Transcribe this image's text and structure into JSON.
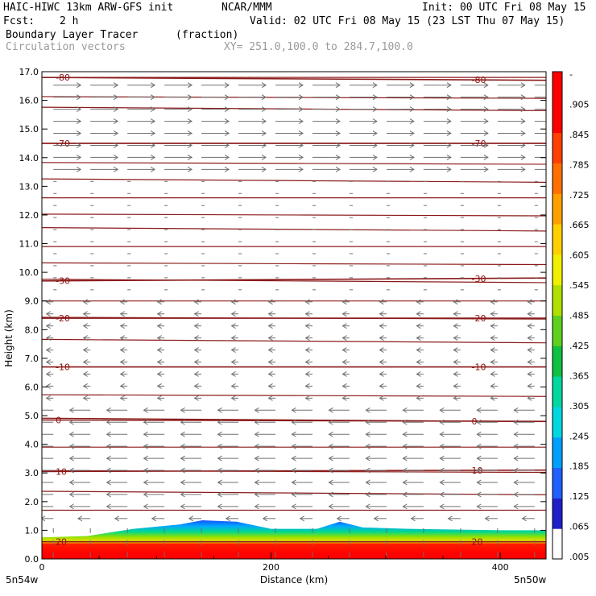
{
  "header": {
    "model": "HAIC-HIWC 13km ARW-GFS init",
    "org": "NCAR/MMM",
    "init": "Init: 00 UTC Fri 08 May 15",
    "fcst_label": "Fcst:",
    "fcst_value": "2 h",
    "valid": "Valid: 02 UTC Fri 08 May 15 (23 LST Thu 07 May 15)",
    "field": "Boundary Layer Tracer",
    "units": "(fraction)",
    "vectors": "Circulation vectors",
    "xy": "XY= 251.0,100.0 to 284.7,100.0"
  },
  "colors": {
    "contour": "#8b1a1a",
    "vector": "#707070",
    "colorbar": [
      "#ffffff",
      "#2020c8",
      "#2060ff",
      "#00a0ff",
      "#00d8e0",
      "#00d8a0",
      "#10c040",
      "#60d020",
      "#b0e000",
      "#f0f000",
      "#ffd000",
      "#ffa000",
      "#ff7000",
      "#ff4000",
      "#ff0000",
      "#ff0000"
    ]
  },
  "chart_data": {
    "type": "heatmap",
    "title": "Boundary Layer Tracer",
    "units": "(fraction)",
    "ylabel": "Height (km)",
    "xlabel": "Distance (km)",
    "xlim": [
      0,
      440
    ],
    "ylim": [
      0,
      17
    ],
    "x_ticks": [
      "0",
      "200",
      "400"
    ],
    "y_ticks": [
      "0.0",
      "1.0",
      "2.0",
      "3.0",
      "4.0",
      "5.0",
      "6.0",
      "7.0",
      "8.0",
      "9.0",
      "10.0",
      "11.0",
      "12.0",
      "13.0",
      "14.0",
      "15.0",
      "16.0",
      "17.0"
    ],
    "x_endpoints": [
      "5n54w",
      "5n50w"
    ],
    "colorbar_labels": [
      "-",
      ".905",
      ".845",
      ".785",
      ".725",
      ".665",
      ".605",
      ".545",
      ".485",
      ".425",
      ".365",
      ".305",
      ".245",
      ".185",
      ".125",
      ".065",
      ".005"
    ],
    "tracer_top_km": [
      {
        "x": 0,
        "top": 0.75
      },
      {
        "x": 40,
        "top": 0.8
      },
      {
        "x": 80,
        "top": 1.05
      },
      {
        "x": 120,
        "top": 1.2
      },
      {
        "x": 140,
        "top": 1.35
      },
      {
        "x": 170,
        "top": 1.3
      },
      {
        "x": 200,
        "top": 1.05
      },
      {
        "x": 240,
        "top": 1.05
      },
      {
        "x": 260,
        "top": 1.3
      },
      {
        "x": 280,
        "top": 1.1
      },
      {
        "x": 320,
        "top": 1.05
      },
      {
        "x": 400,
        "top": 1.0
      },
      {
        "x": 440,
        "top": 1.0
      }
    ],
    "temperature_contours": [
      {
        "label": "-80",
        "y_left": 16.8,
        "y_right": 16.7
      },
      {
        "label": "-70",
        "y_left": 14.5,
        "y_right": 14.5
      },
      {
        "label": "-30",
        "y_left": 9.7,
        "y_right": 9.8
      },
      {
        "label": "-20",
        "y_left": 8.4,
        "y_right": 8.4
      },
      {
        "label": "-10",
        "y_left": 6.7,
        "y_right": 6.7
      },
      {
        "label": "0",
        "y_left": 4.85,
        "y_right": 4.8
      },
      {
        "label": "10",
        "y_left": 3.05,
        "y_right": 3.1
      },
      {
        "label": "20",
        "y_left": 0.6,
        "y_right": 0.6
      }
    ],
    "contour_lines_km": [
      16.8,
      16.1,
      15.7,
      14.5,
      13.8,
      13.2,
      12.6,
      12.0,
      11.5,
      10.9,
      10.3,
      9.7,
      9.0,
      8.4,
      7.6,
      6.7,
      5.7,
      4.85,
      3.9,
      3.05,
      2.3,
      1.7
    ]
  }
}
